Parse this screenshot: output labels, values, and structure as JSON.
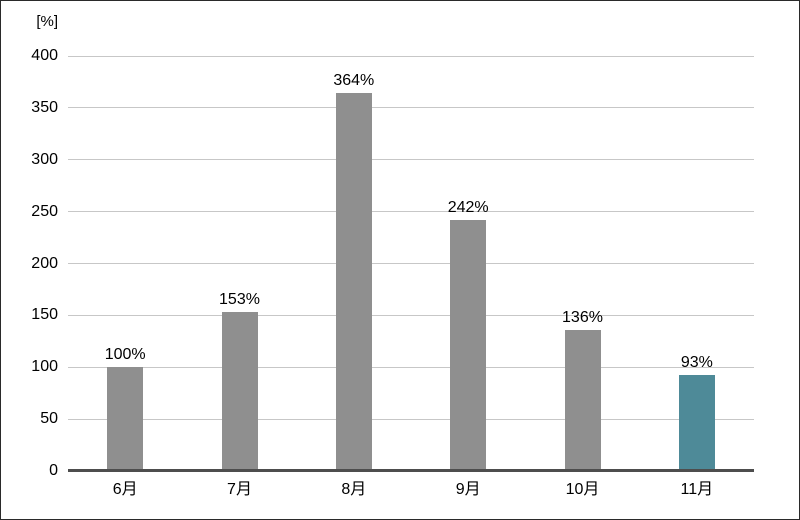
{
  "chart_data": {
    "type": "bar",
    "title": "",
    "unit_label": "[%]",
    "categories": [
      "6月",
      "7月",
      "8月",
      "9月",
      "10月",
      "11月"
    ],
    "values": [
      100,
      153,
      364,
      242,
      136,
      93
    ],
    "value_labels": [
      "100%",
      "153%",
      "364%",
      "242%",
      "136%",
      "93%"
    ],
    "ylim": [
      0,
      400
    ],
    "ytick_step": 50,
    "yticks": [
      0,
      50,
      100,
      150,
      200,
      250,
      300,
      350,
      400
    ],
    "grid": true,
    "legend_position": "none",
    "bar_colors": [
      "#8f8f8f",
      "#8f8f8f",
      "#8f8f8f",
      "#8f8f8f",
      "#8f8f8f",
      "#4e8a98"
    ],
    "default_bar_color": "#8f8f8f",
    "highlight_bar_color": "#4e8a98",
    "gridline_color": "#c7c7c7",
    "axis_line_color": "#4d4d4d",
    "label_color": "#000000"
  }
}
